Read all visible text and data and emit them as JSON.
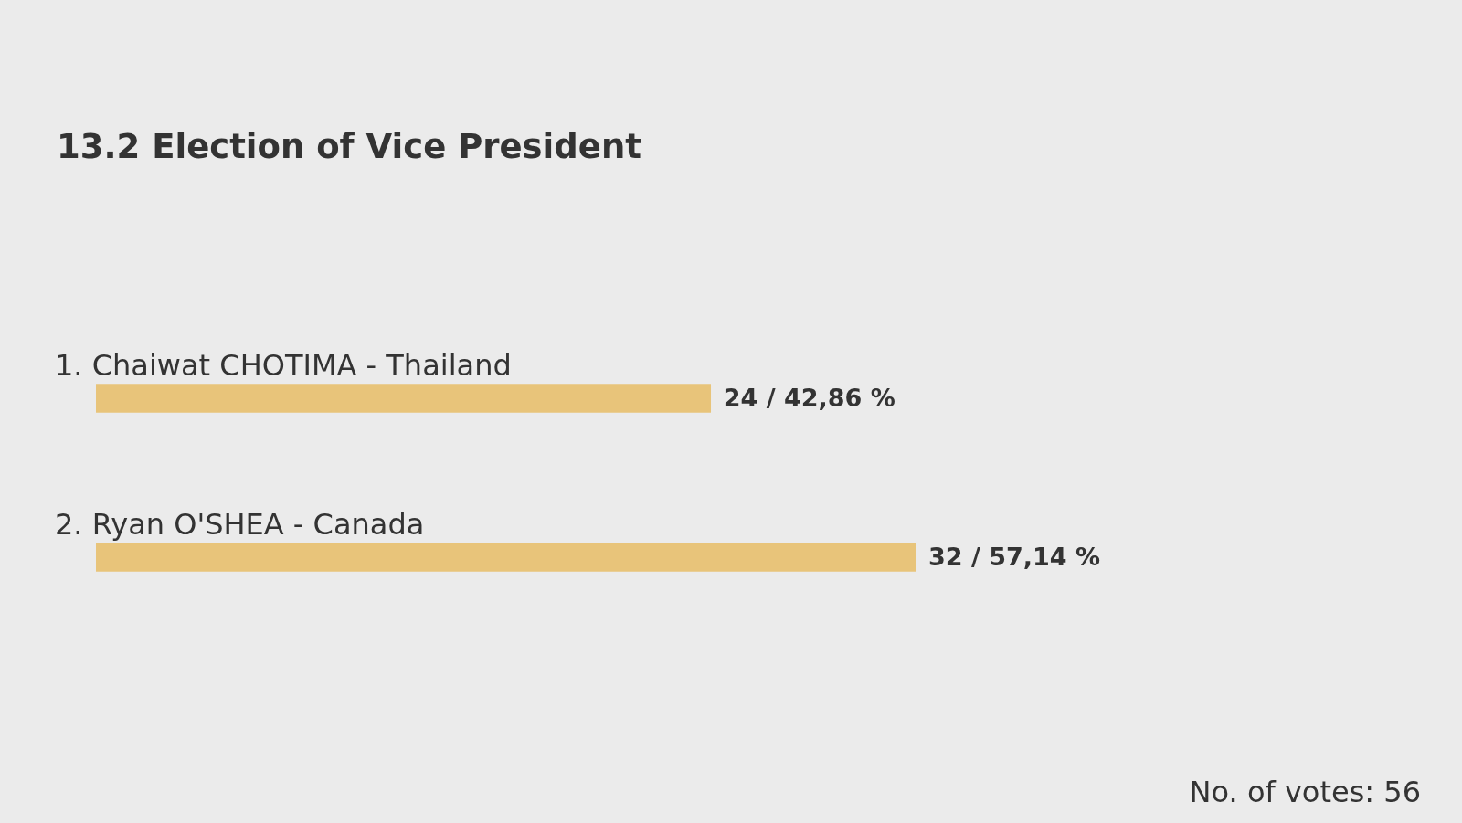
{
  "chart_data": {
    "type": "bar",
    "orientation": "horizontal",
    "title": "13.2 Election of Vice President",
    "categories": [
      "1. Chaiwat CHOTIMA - Thailand",
      "2. Ryan O'SHEA - Canada"
    ],
    "values": [
      24,
      32
    ],
    "value_labels": [
      "24 / 42,86 %",
      "32 / 57,14 %"
    ],
    "color": "#e8c47a",
    "tick_labels": "y",
    "annotations": [
      "No. of votes: 56"
    ]
  }
}
